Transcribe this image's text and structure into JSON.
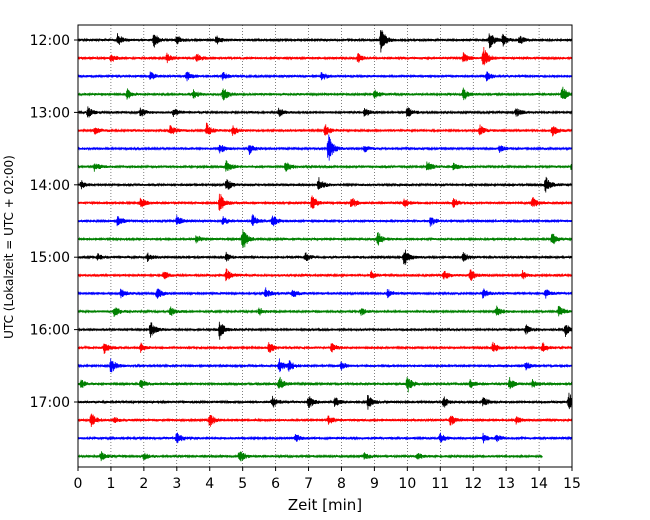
{
  "chart_data": {
    "type": "line",
    "title": "",
    "xlabel": "Zeit  [min]",
    "ylabel": "UTC (Lokalzeit = UTC + 02:00)",
    "xlim": [
      0,
      15
    ],
    "x_ticks": [
      0,
      1,
      2,
      3,
      4,
      5,
      6,
      7,
      8,
      9,
      10,
      11,
      12,
      13,
      14,
      15
    ],
    "x_tick_labels": [
      "0",
      "1",
      "2",
      "3",
      "4",
      "5",
      "6",
      "7",
      "8",
      "9",
      "10",
      "11",
      "12",
      "13",
      "14",
      "15"
    ],
    "x_grid": "dotted vertical lines at each minute",
    "y_tick_labels": [
      "12:00",
      "13:00",
      "14:00",
      "15:00",
      "16:00",
      "17:00"
    ],
    "trace_interval_minutes": 15,
    "first_trace": "12:00",
    "last_trace": "17:45",
    "last_trace_end_minute": 14.1,
    "colors_cycle": [
      "#000000",
      "#ff0000",
      "#0000ff",
      "#008000"
    ],
    "series": [
      {
        "start": "12:00",
        "events": [
          {
            "t": 1.2,
            "a": 0.7
          },
          {
            "t": 2.3,
            "a": 0.9
          },
          {
            "t": 3.0,
            "a": 0.5
          },
          {
            "t": 4.2,
            "a": 0.5
          },
          {
            "t": 9.2,
            "a": 1.4
          },
          {
            "t": 12.5,
            "a": 1.0
          },
          {
            "t": 12.9,
            "a": 0.7
          },
          {
            "t": 13.4,
            "a": 0.5
          }
        ]
      },
      {
        "start": "12:15",
        "events": [
          {
            "t": 1.0,
            "a": 0.5
          },
          {
            "t": 2.7,
            "a": 0.5
          },
          {
            "t": 3.6,
            "a": 0.6
          },
          {
            "t": 8.5,
            "a": 0.5
          },
          {
            "t": 11.7,
            "a": 0.6
          },
          {
            "t": 12.3,
            "a": 1.4
          }
        ]
      },
      {
        "start": "12:30",
        "events": [
          {
            "t": 2.2,
            "a": 0.5
          },
          {
            "t": 3.3,
            "a": 0.6
          },
          {
            "t": 4.4,
            "a": 0.5
          },
          {
            "t": 7.4,
            "a": 0.5
          },
          {
            "t": 12.4,
            "a": 0.6
          }
        ]
      },
      {
        "start": "12:45",
        "events": [
          {
            "t": 1.5,
            "a": 0.6
          },
          {
            "t": 3.5,
            "a": 0.5
          },
          {
            "t": 4.4,
            "a": 0.9
          },
          {
            "t": 9.0,
            "a": 0.5
          },
          {
            "t": 11.7,
            "a": 0.7
          },
          {
            "t": 14.7,
            "a": 0.9
          }
        ]
      },
      {
        "start": "13:00",
        "events": [
          {
            "t": 0.3,
            "a": 0.6
          },
          {
            "t": 1.9,
            "a": 0.5
          },
          {
            "t": 2.9,
            "a": 0.5
          },
          {
            "t": 6.1,
            "a": 0.5
          },
          {
            "t": 8.7,
            "a": 0.5
          },
          {
            "t": 10.0,
            "a": 0.6
          },
          {
            "t": 13.3,
            "a": 0.5
          }
        ]
      },
      {
        "start": "13:15",
        "events": [
          {
            "t": 0.5,
            "a": 0.5
          },
          {
            "t": 2.8,
            "a": 0.6
          },
          {
            "t": 3.9,
            "a": 0.8
          },
          {
            "t": 4.7,
            "a": 0.6
          },
          {
            "t": 7.5,
            "a": 0.7
          },
          {
            "t": 12.2,
            "a": 0.6
          },
          {
            "t": 14.4,
            "a": 0.7
          }
        ]
      },
      {
        "start": "13:30",
        "events": [
          {
            "t": 4.3,
            "a": 0.6
          },
          {
            "t": 5.2,
            "a": 0.6
          },
          {
            "t": 7.6,
            "a": 1.7
          },
          {
            "t": 8.7,
            "a": 0.4
          },
          {
            "t": 12.8,
            "a": 0.4
          }
        ]
      },
      {
        "start": "13:45",
        "events": [
          {
            "t": 0.5,
            "a": 0.5
          },
          {
            "t": 4.5,
            "a": 0.7
          },
          {
            "t": 6.3,
            "a": 0.6
          },
          {
            "t": 10.6,
            "a": 0.6
          },
          {
            "t": 11.4,
            "a": 0.5
          },
          {
            "t": 15.0,
            "a": 0.8
          }
        ]
      },
      {
        "start": "14:00",
        "events": [
          {
            "t": 0.1,
            "a": 0.5
          },
          {
            "t": 4.5,
            "a": 0.8
          },
          {
            "t": 7.3,
            "a": 0.9
          },
          {
            "t": 14.2,
            "a": 0.9
          }
        ]
      },
      {
        "start": "14:15",
        "events": [
          {
            "t": 1.9,
            "a": 0.6
          },
          {
            "t": 4.3,
            "a": 1.2
          },
          {
            "t": 7.1,
            "a": 0.9
          },
          {
            "t": 8.3,
            "a": 0.7
          },
          {
            "t": 9.9,
            "a": 0.6
          },
          {
            "t": 11.4,
            "a": 0.5
          },
          {
            "t": 13.8,
            "a": 0.7
          }
        ]
      },
      {
        "start": "14:30",
        "events": [
          {
            "t": 1.2,
            "a": 0.6
          },
          {
            "t": 3.0,
            "a": 0.6
          },
          {
            "t": 4.4,
            "a": 0.5
          },
          {
            "t": 5.3,
            "a": 0.7
          },
          {
            "t": 5.9,
            "a": 0.8
          },
          {
            "t": 10.7,
            "a": 0.6
          }
        ]
      },
      {
        "start": "14:45",
        "events": [
          {
            "t": 3.6,
            "a": 0.5
          },
          {
            "t": 5.0,
            "a": 1.3
          },
          {
            "t": 9.1,
            "a": 0.9
          },
          {
            "t": 14.4,
            "a": 0.8
          }
        ]
      },
      {
        "start": "15:00",
        "events": [
          {
            "t": 0.6,
            "a": 0.4
          },
          {
            "t": 2.1,
            "a": 0.5
          },
          {
            "t": 4.5,
            "a": 0.5
          },
          {
            "t": 6.9,
            "a": 0.5
          },
          {
            "t": 9.9,
            "a": 1.1
          },
          {
            "t": 11.7,
            "a": 0.6
          }
        ]
      },
      {
        "start": "15:15",
        "events": [
          {
            "t": 2.6,
            "a": 0.5
          },
          {
            "t": 4.5,
            "a": 0.7
          },
          {
            "t": 8.9,
            "a": 0.4
          },
          {
            "t": 11.1,
            "a": 0.6
          },
          {
            "t": 11.9,
            "a": 0.8
          },
          {
            "t": 13.5,
            "a": 0.5
          }
        ]
      },
      {
        "start": "15:30",
        "events": [
          {
            "t": 1.3,
            "a": 0.5
          },
          {
            "t": 2.4,
            "a": 0.7
          },
          {
            "t": 5.7,
            "a": 0.6
          },
          {
            "t": 6.5,
            "a": 0.5
          },
          {
            "t": 9.4,
            "a": 0.5
          },
          {
            "t": 12.3,
            "a": 0.6
          },
          {
            "t": 14.2,
            "a": 0.5
          }
        ]
      },
      {
        "start": "15:45",
        "events": [
          {
            "t": 1.1,
            "a": 0.6
          },
          {
            "t": 2.8,
            "a": 0.6
          },
          {
            "t": 5.5,
            "a": 0.5
          },
          {
            "t": 8.6,
            "a": 0.4
          },
          {
            "t": 12.7,
            "a": 0.6
          },
          {
            "t": 14.6,
            "a": 0.7
          }
        ]
      },
      {
        "start": "16:00",
        "events": [
          {
            "t": 2.2,
            "a": 0.9
          },
          {
            "t": 4.3,
            "a": 1.1
          },
          {
            "t": 13.6,
            "a": 0.5
          },
          {
            "t": 14.8,
            "a": 0.7
          }
        ]
      },
      {
        "start": "16:15",
        "events": [
          {
            "t": 0.8,
            "a": 0.6
          },
          {
            "t": 1.9,
            "a": 0.5
          },
          {
            "t": 5.8,
            "a": 0.7
          },
          {
            "t": 7.7,
            "a": 0.6
          },
          {
            "t": 12.6,
            "a": 0.7
          },
          {
            "t": 14.1,
            "a": 0.6
          }
        ]
      },
      {
        "start": "16:30",
        "events": [
          {
            "t": 1.0,
            "a": 0.9
          },
          {
            "t": 6.1,
            "a": 0.8
          },
          {
            "t": 6.4,
            "a": 0.6
          },
          {
            "t": 8.0,
            "a": 0.5
          },
          {
            "t": 13.6,
            "a": 0.5
          }
        ]
      },
      {
        "start": "16:45",
        "events": [
          {
            "t": 0.1,
            "a": 0.5
          },
          {
            "t": 1.9,
            "a": 0.6
          },
          {
            "t": 6.1,
            "a": 0.9
          },
          {
            "t": 10.0,
            "a": 1.0
          },
          {
            "t": 11.9,
            "a": 0.5
          },
          {
            "t": 13.1,
            "a": 0.7
          },
          {
            "t": 13.8,
            "a": 0.5
          }
        ]
      },
      {
        "start": "17:00",
        "events": [
          {
            "t": 5.9,
            "a": 0.7
          },
          {
            "t": 7.0,
            "a": 0.8
          },
          {
            "t": 7.8,
            "a": 0.6
          },
          {
            "t": 8.8,
            "a": 0.8
          },
          {
            "t": 11.1,
            "a": 0.7
          },
          {
            "t": 12.3,
            "a": 0.5
          },
          {
            "t": 14.9,
            "a": 1.1
          }
        ]
      },
      {
        "start": "17:15",
        "events": [
          {
            "t": 0.4,
            "a": 0.8
          },
          {
            "t": 1.1,
            "a": 0.4
          },
          {
            "t": 4.0,
            "a": 0.8
          },
          {
            "t": 7.6,
            "a": 0.5
          },
          {
            "t": 11.3,
            "a": 0.7
          },
          {
            "t": 13.3,
            "a": 0.4
          }
        ]
      },
      {
        "start": "17:30",
        "events": [
          {
            "t": 3.0,
            "a": 0.7
          },
          {
            "t": 6.6,
            "a": 0.5
          },
          {
            "t": 11.0,
            "a": 0.6
          },
          {
            "t": 12.3,
            "a": 0.5
          },
          {
            "t": 12.7,
            "a": 0.4
          }
        ]
      },
      {
        "start": "17:45",
        "events": [
          {
            "t": 0.7,
            "a": 0.5
          },
          {
            "t": 2.0,
            "a": 0.4
          },
          {
            "t": 4.9,
            "a": 0.8
          },
          {
            "t": 8.7,
            "a": 0.4
          },
          {
            "t": 10.3,
            "a": 0.4
          }
        ]
      }
    ]
  }
}
